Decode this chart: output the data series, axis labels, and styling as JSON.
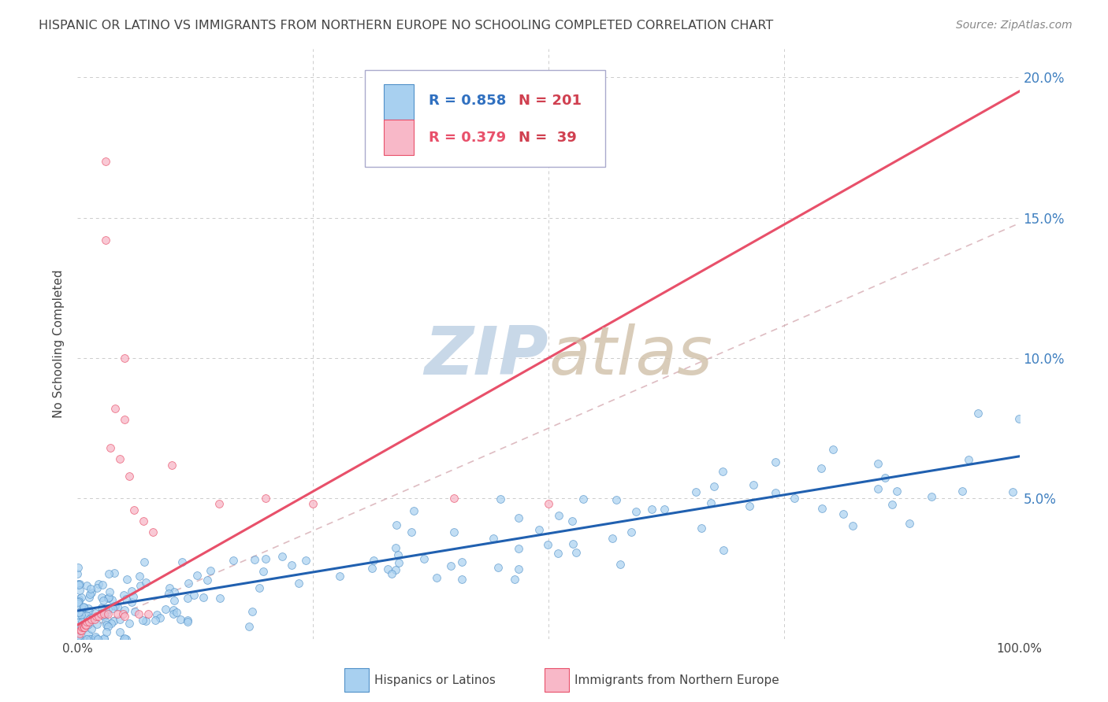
{
  "title": "HISPANIC OR LATINO VS IMMIGRANTS FROM NORTHERN EUROPE NO SCHOOLING COMPLETED CORRELATION CHART",
  "source": "Source: ZipAtlas.com",
  "ylabel": "No Schooling Completed",
  "xlim": [
    0,
    1.0
  ],
  "ylim": [
    0,
    0.21
  ],
  "legend1_r": "0.858",
  "legend1_n": "201",
  "legend2_r": "0.379",
  "legend2_n": "39",
  "blue_color": "#A8D0F0",
  "blue_edge_color": "#5090C8",
  "pink_color": "#F8B8C8",
  "pink_edge_color": "#E8506A",
  "blue_line_color": "#2060B0",
  "pink_line_color": "#E8506A",
  "dashed_line_color": "#D0A0A8",
  "watermark_color": "#C8D8E8",
  "background_color": "#FFFFFF",
  "grid_color": "#CCCCCC",
  "title_color": "#444444",
  "tick_label_color": "#444444",
  "right_tick_color": "#4080C0",
  "legend_border_color": "#AAAACC",
  "legend_r_blue_color": "#3070C0",
  "legend_r_pink_color": "#E8506A",
  "legend_n_color": "#D04050"
}
